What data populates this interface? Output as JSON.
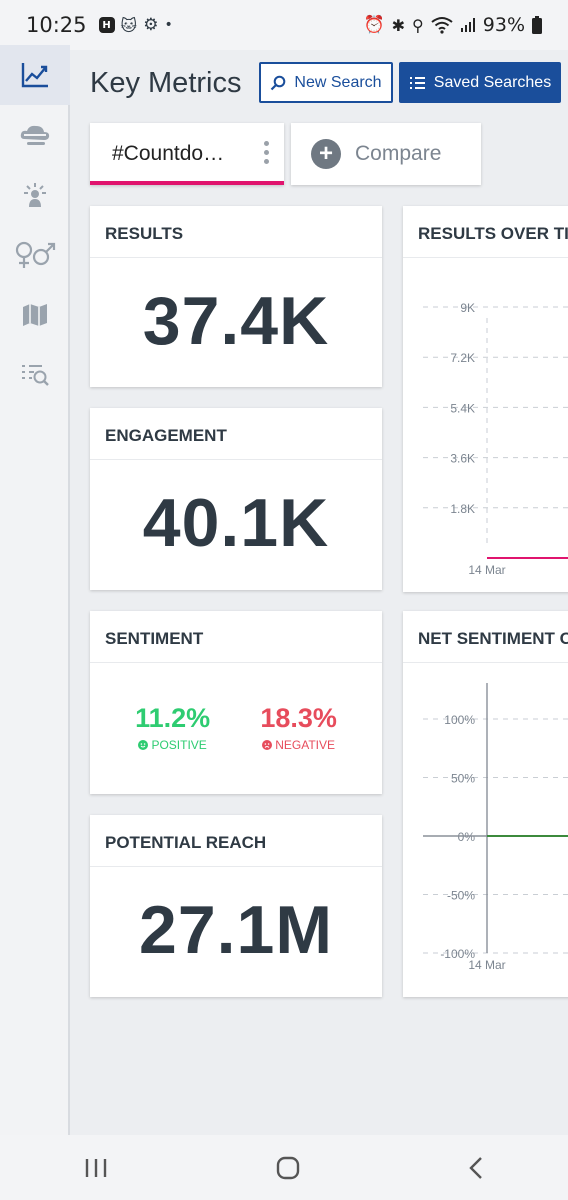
{
  "status": {
    "time": "10:25",
    "battery": "93%",
    "dot": "•"
  },
  "sidebar": {
    "items": [
      {
        "icon": "trend-chart-icon",
        "active": true
      },
      {
        "icon": "cloud-layers-icon"
      },
      {
        "icon": "influencer-icon"
      },
      {
        "icon": "gender-icon"
      },
      {
        "icon": "map-icon"
      },
      {
        "icon": "filter-list-icon"
      }
    ]
  },
  "header": {
    "title": "Key Metrics",
    "new_search": "New Search",
    "saved_searches": "Saved Searches"
  },
  "tabs": {
    "search": "#Countdo…",
    "compare": "Compare"
  },
  "cards": {
    "results": {
      "title": "RESULTS",
      "value": "37.4K"
    },
    "engagement": {
      "title": "ENGAGEMENT",
      "value": "40.1K"
    },
    "sentiment": {
      "title": "SENTIMENT",
      "positive_value": "11.2%",
      "positive_label": "POSITIVE",
      "negative_value": "18.3%",
      "negative_label": "NEGATIVE"
    },
    "reach": {
      "title": "POTENTIAL REACH",
      "value": "27.1M"
    },
    "results_over_time": {
      "title": "RESULTS OVER TI"
    },
    "net_sentiment": {
      "title": "NET SENTIMENT O"
    }
  },
  "chart_data": [
    {
      "type": "line",
      "title": "RESULTS OVER TI",
      "y_ticks": [
        "9K",
        "7.2K",
        "5.4K",
        "3.6K",
        "1.8K"
      ],
      "x_ticks": [
        "14 Mar"
      ],
      "ylim": [
        0,
        9000
      ],
      "series_color": "#e0146e",
      "values": [
        0
      ]
    },
    {
      "type": "line",
      "title": "NET SENTIMENT O",
      "y_ticks": [
        "100%",
        "50%",
        "0%",
        "-50%",
        "-100%"
      ],
      "x_ticks": [
        "14 Mar"
      ],
      "ylim": [
        -100,
        100
      ],
      "series_color": "#3c8a3c",
      "values": [
        0
      ]
    }
  ],
  "colors": {
    "accent": "#1a4e9b",
    "tab_underline": "#e0146e",
    "positive": "#2ecc71",
    "negative": "#e74c5c"
  }
}
